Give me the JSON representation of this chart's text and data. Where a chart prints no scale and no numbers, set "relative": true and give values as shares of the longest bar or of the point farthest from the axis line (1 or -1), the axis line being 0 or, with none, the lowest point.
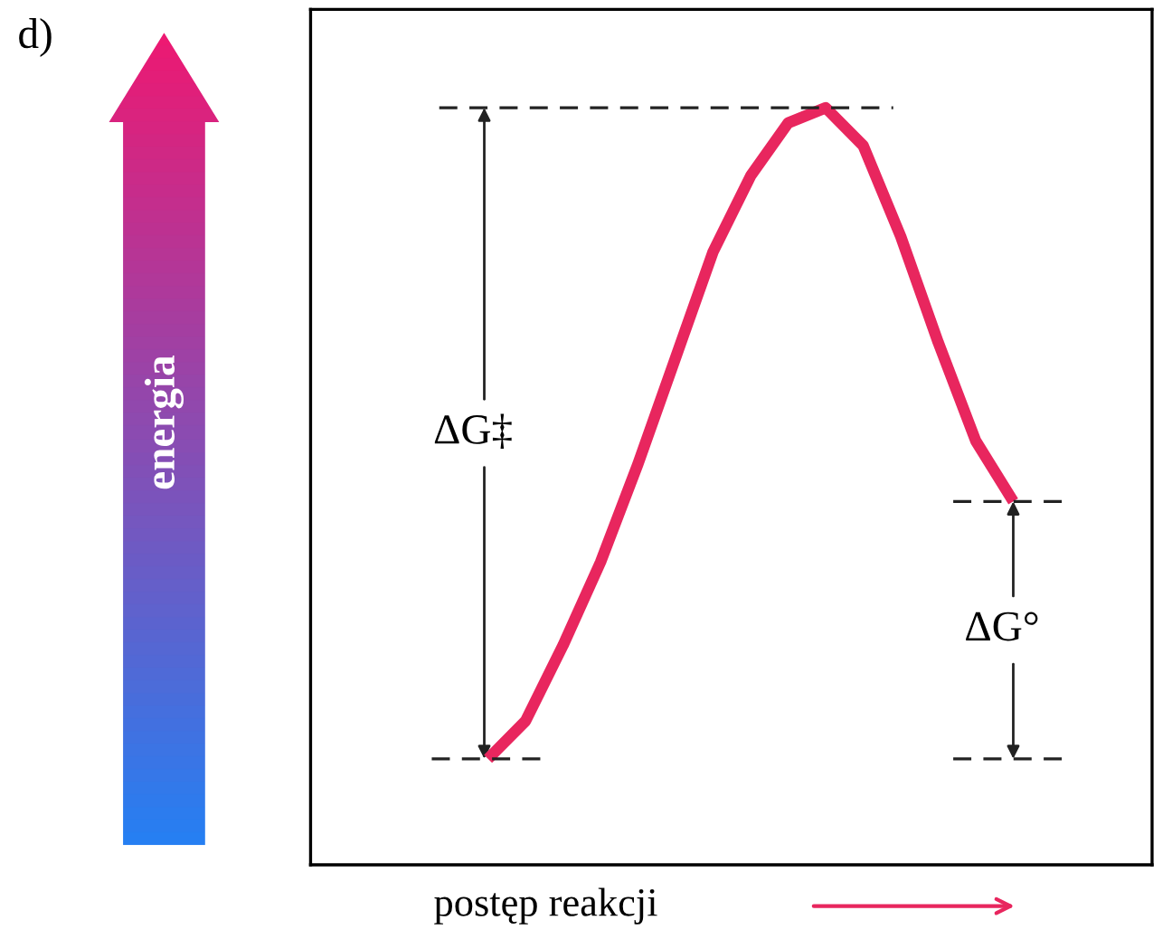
{
  "chart_data": {
    "type": "line",
    "relative": true,
    "xlabel": "postęp reakcji",
    "categories": [
      null,
      null,
      null,
      null,
      null,
      null,
      null,
      null,
      null,
      null,
      null,
      null,
      null,
      null,
      null
    ],
    "series": [
      {
        "color": "#e8265e",
        "values": [
          0.14,
          0.19,
          0.29,
          0.4,
          0.53,
          0.67,
          0.81,
          0.91,
          0.98,
          1,
          0.95,
          0.83,
          0.69,
          0.56,
          0.48
        ]
      }
    ],
    "ref_lines": [
      {
        "axis": "y",
        "value": 1,
        "line_style": "dashed",
        "color": "#222222"
      },
      {
        "axis": "y",
        "value": 0.14,
        "line_style": "dashed",
        "color": "#222222"
      },
      {
        "axis": "y",
        "value": 0.48,
        "line_style": "dashed",
        "color": "#222222"
      }
    ],
    "annotations": [
      "d)",
      "ΔG‡",
      "ΔG°",
      "energia"
    ],
    "marker": "none",
    "line_style": "solid"
  }
}
